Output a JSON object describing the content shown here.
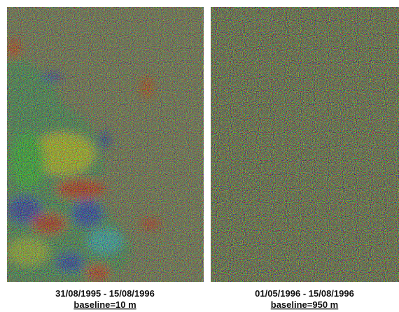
{
  "panels": [
    {
      "dates": "31/08/1995 - 15/08/1996",
      "baseline": "baseline=10 m"
    },
    {
      "dates": "01/05/1996 - 15/08/1996",
      "baseline": "baseline=950 m"
    }
  ]
}
